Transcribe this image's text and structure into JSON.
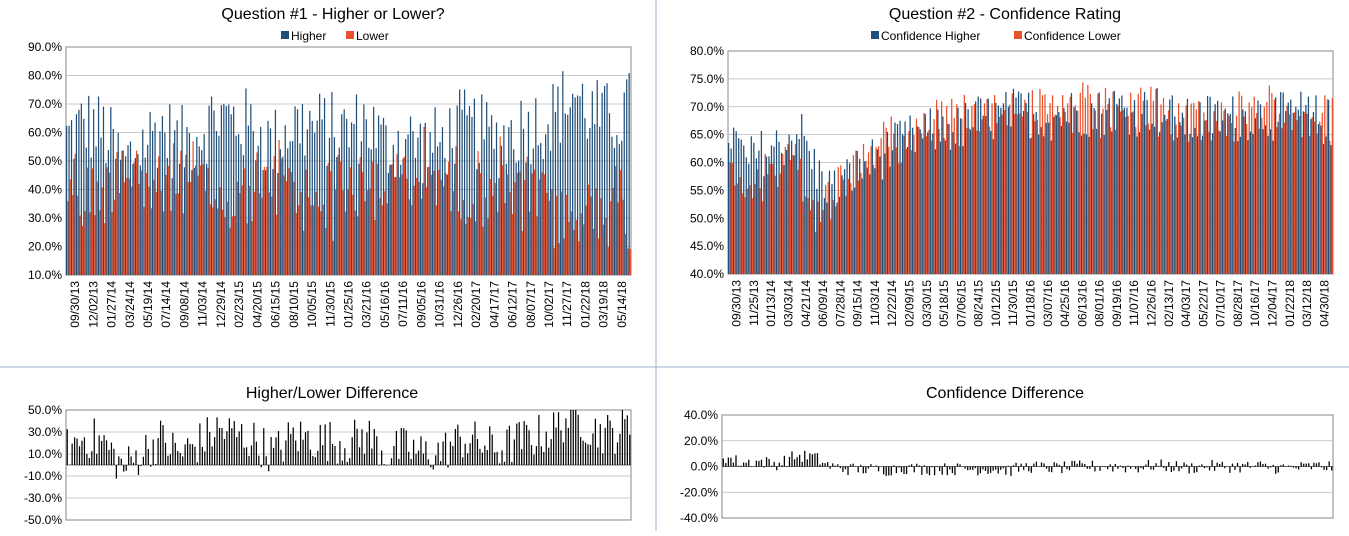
{
  "colors": {
    "higher": "#1f4e79",
    "lower": "#e8532e",
    "difference": "#000000",
    "grid": "#b7b7b7",
    "divider": "#9db0c8"
  },
  "chart_data": [
    {
      "type": "bar",
      "title": "Question #1 - Higher or Lower?",
      "ylim": [
        0.1,
        0.9
      ],
      "yticks": [
        "10.0%",
        "20.0%",
        "30.0%",
        "40.0%",
        "50.0%",
        "60.0%",
        "70.0%",
        "80.0%",
        "90.0%"
      ],
      "categories": [
        "09/30/13",
        "12/02/13",
        "01/27/14",
        "03/24/14",
        "05/19/14",
        "07/14/14",
        "09/08/14",
        "11/03/14",
        "12/29/14",
        "02/23/15",
        "04/20/15",
        "06/15/15",
        "08/10/15",
        "10/05/15",
        "11/30/15",
        "01/25/16",
        "03/21/16",
        "05/16/16",
        "07/11/16",
        "09/05/16",
        "10/31/16",
        "12/26/16",
        "02/20/17",
        "04/17/17",
        "06/12/17",
        "08/07/17",
        "10/02/17",
        "11/27/17",
        "01/22/18",
        "03/19/18",
        "05/14/18"
      ],
      "series": [
        {
          "name": "Higher",
          "values": [
            0.58,
            0.63,
            0.6,
            0.48,
            0.56,
            0.62,
            0.55,
            0.6,
            0.66,
            0.64,
            0.61,
            0.55,
            0.63,
            0.62,
            0.61,
            0.6,
            0.64,
            0.55,
            0.58,
            0.55,
            0.56,
            0.62,
            0.6,
            0.57,
            0.61,
            0.63,
            0.66,
            0.74,
            0.66,
            0.64,
            0.68
          ]
        },
        {
          "name": "Lower",
          "values": [
            0.42,
            0.37,
            0.4,
            0.52,
            0.44,
            0.38,
            0.45,
            0.4,
            0.34,
            0.36,
            0.39,
            0.45,
            0.37,
            0.38,
            0.39,
            0.4,
            0.36,
            0.45,
            0.42,
            0.45,
            0.44,
            0.38,
            0.4,
            0.43,
            0.39,
            0.37,
            0.34,
            0.26,
            0.34,
            0.36,
            0.32
          ]
        }
      ]
    },
    {
      "type": "bar",
      "title": "Question #2 - Confidence Rating",
      "ylim": [
        0.4,
        0.8
      ],
      "yticks": [
        "40.0%",
        "45.0%",
        "50.0%",
        "55.0%",
        "60.0%",
        "65.0%",
        "70.0%",
        "75.0%",
        "80.0%"
      ],
      "categories": [
        "09/30/13",
        "11/25/13",
        "01/13/14",
        "03/03/14",
        "04/21/14",
        "06/09/14",
        "07/28/14",
        "09/15/14",
        "11/03/14",
        "12/22/14",
        "02/09/15",
        "03/30/15",
        "05/18/15",
        "07/06/15",
        "08/24/15",
        "10/12/15",
        "11/30/15",
        "01/18/16",
        "03/07/16",
        "04/25/16",
        "06/13/16",
        "08/01/16",
        "09/19/16",
        "11/07/16",
        "12/26/16",
        "02/13/17",
        "04/03/17",
        "05/22/17",
        "07/10/17",
        "08/28/17",
        "10/16/17",
        "12/04/17",
        "01/22/18",
        "03/12/18",
        "04/30/18"
      ],
      "series": [
        {
          "name": "Confidence Higher",
          "values": [
            0.66,
            0.6,
            0.62,
            0.63,
            0.66,
            0.58,
            0.55,
            0.58,
            0.6,
            0.62,
            0.64,
            0.65,
            0.66,
            0.66,
            0.68,
            0.68,
            0.69,
            0.69,
            0.68,
            0.69,
            0.69,
            0.69,
            0.7,
            0.69,
            0.7,
            0.68,
            0.67,
            0.68,
            0.68,
            0.68,
            0.69,
            0.68,
            0.69,
            0.68,
            0.67
          ]
        },
        {
          "name": "Confidence Lower",
          "values": [
            0.58,
            0.57,
            0.58,
            0.61,
            0.58,
            0.5,
            0.55,
            0.6,
            0.62,
            0.65,
            0.65,
            0.67,
            0.68,
            0.68,
            0.7,
            0.7,
            0.72,
            0.69,
            0.69,
            0.7,
            0.69,
            0.69,
            0.7,
            0.7,
            0.69,
            0.68,
            0.68,
            0.68,
            0.68,
            0.68,
            0.69,
            0.69,
            0.7,
            0.68,
            0.67
          ]
        }
      ]
    },
    {
      "type": "bar",
      "title": "Higher/Lower Difference",
      "ylim": [
        -0.5,
        0.5
      ],
      "yticks": [
        "-50.0%",
        "-30.0%",
        "-10.0%",
        "10.0%",
        "30.0%",
        "50.0%"
      ],
      "series": [
        {
          "values": [
            0.15,
            0.26,
            0.2,
            -0.04,
            0.12,
            0.24,
            0.1,
            0.2,
            0.32,
            0.28,
            0.22,
            0.1,
            0.26,
            0.24,
            0.22,
            0.2,
            0.28,
            0.1,
            0.16,
            0.1,
            0.12,
            0.24,
            0.2,
            0.14,
            0.22,
            0.26,
            0.32,
            0.48,
            0.32,
            0.28,
            0.36
          ]
        }
      ]
    },
    {
      "type": "bar",
      "title": "Confidence Difference",
      "ylim": [
        -0.4,
        0.4
      ],
      "yticks": [
        "-40.0%",
        "-20.0%",
        "0.0%",
        "20.0%",
        "40.0%"
      ],
      "series": [
        {
          "values": [
            0.08,
            0.03,
            0.04,
            0.02,
            0.08,
            0.08,
            0.0,
            -0.02,
            -0.02,
            -0.03,
            -0.01,
            -0.02,
            -0.02,
            -0.02,
            -0.02,
            -0.02,
            -0.03,
            0.0,
            -0.01,
            -0.01,
            0.0,
            0.0,
            0.0,
            -0.01,
            0.01,
            0.0,
            -0.01,
            0.0,
            0.0,
            0.0,
            0.0,
            -0.01,
            -0.01,
            0.0,
            0.0
          ]
        }
      ]
    }
  ]
}
